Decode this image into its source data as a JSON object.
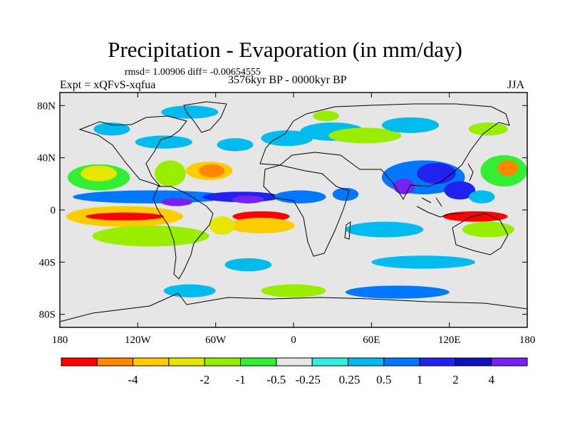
{
  "title": "Precipitation - Evaporation (in mm/day)",
  "stats": "rmsd= 1.00906 diff= -0.00654555",
  "experiment": "Expt = xQFvS-xqfua",
  "period": "3576kyr BP - 0000kyr BP",
  "season": "JJA",
  "map": {
    "projection": "cylindrical equidistant",
    "lon_range": [
      -180,
      180
    ],
    "lat_range": [
      -90,
      90
    ],
    "lat_ticks": [
      {
        "value": 80,
        "label": "80N"
      },
      {
        "value": 40,
        "label": "40N"
      },
      {
        "value": 0,
        "label": "0"
      },
      {
        "value": -40,
        "label": "40S"
      },
      {
        "value": -80,
        "label": "80S"
      }
    ],
    "lon_ticks": [
      {
        "value": -180,
        "label": "180"
      },
      {
        "value": -120,
        "label": "120W"
      },
      {
        "value": -60,
        "label": "60W"
      },
      {
        "value": 0,
        "label": "0"
      },
      {
        "value": 60,
        "label": "60E"
      },
      {
        "value": 120,
        "label": "120E"
      },
      {
        "value": 180,
        "label": "180"
      }
    ]
  },
  "colorbar": {
    "colors": [
      "#ff0000",
      "#ff8800",
      "#ffcc00",
      "#e6e600",
      "#99ee00",
      "#33ee33",
      "#e6e6e6",
      "#33eedd",
      "#00bbee",
      "#0077ff",
      "#2222ee",
      "#1111bb",
      "#7722ee"
    ],
    "labels": [
      "-4",
      "-2",
      "-1",
      "-0.5",
      "-0.25",
      "0.25",
      "0.5",
      "1",
      "2",
      "4"
    ]
  },
  "field_patches": [
    {
      "lon": -150,
      "lat": 25,
      "rlon": 24,
      "rlat": 10,
      "c": 5
    },
    {
      "lon": -150,
      "lat": 28,
      "rlon": 14,
      "rlat": 6,
      "c": 3
    },
    {
      "lon": -95,
      "lat": 28,
      "rlon": 12,
      "rlat": 10,
      "c": 4
    },
    {
      "lon": -65,
      "lat": 30,
      "rlon": 18,
      "rlat": 7,
      "c": 2
    },
    {
      "lon": -63,
      "lat": 30,
      "rlon": 10,
      "rlat": 5,
      "c": 1
    },
    {
      "lon": -45,
      "lat": 50,
      "rlon": 14,
      "rlat": 5,
      "c": 8
    },
    {
      "lon": -100,
      "lat": 52,
      "rlon": 22,
      "rlat": 5,
      "c": 8
    },
    {
      "lon": -80,
      "lat": 75,
      "rlon": 22,
      "rlat": 5,
      "c": 8
    },
    {
      "lon": -140,
      "lat": 62,
      "rlon": 14,
      "rlat": 5,
      "c": 8
    },
    {
      "lon": -5,
      "lat": 55,
      "rlon": 20,
      "rlat": 6,
      "c": 8
    },
    {
      "lon": 30,
      "lat": 60,
      "rlon": 25,
      "rlat": 7,
      "c": 8
    },
    {
      "lon": 55,
      "lat": 57,
      "rlon": 28,
      "rlat": 6,
      "c": 4
    },
    {
      "lon": 90,
      "lat": 65,
      "rlon": 22,
      "rlat": 6,
      "c": 8
    },
    {
      "lon": 150,
      "lat": 62,
      "rlon": 15,
      "rlat": 5,
      "c": 4
    },
    {
      "lon": 25,
      "lat": 72,
      "rlon": 10,
      "rlat": 4,
      "c": 4
    },
    {
      "lon": 162,
      "lat": 30,
      "rlon": 18,
      "rlat": 12,
      "c": 5
    },
    {
      "lon": 165,
      "lat": 32,
      "rlon": 8,
      "rlat": 6,
      "c": 1
    },
    {
      "lon": 100,
      "lat": 25,
      "rlon": 32,
      "rlat": 13,
      "c": 9
    },
    {
      "lon": 110,
      "lat": 28,
      "rlon": 15,
      "rlat": 8,
      "c": 10
    },
    {
      "lon": 85,
      "lat": 18,
      "rlon": 8,
      "rlat": 6,
      "c": 12
    },
    {
      "lon": 128,
      "lat": 15,
      "rlon": 12,
      "rlat": 7,
      "c": 10
    },
    {
      "lon": 145,
      "lat": 10,
      "rlon": 10,
      "rlat": 5,
      "c": 8
    },
    {
      "lon": -110,
      "lat": 10,
      "rlon": 60,
      "rlat": 5,
      "c": 9
    },
    {
      "lon": -40,
      "lat": 10,
      "rlon": 30,
      "rlat": 4,
      "c": 10
    },
    {
      "lon": -90,
      "lat": 6,
      "rlon": 12,
      "rlat": 3,
      "c": 12
    },
    {
      "lon": -35,
      "lat": 8,
      "rlon": 12,
      "rlat": 3,
      "c": 12
    },
    {
      "lon": 5,
      "lat": 10,
      "rlon": 20,
      "rlat": 5,
      "c": 9
    },
    {
      "lon": 40,
      "lat": 12,
      "rlon": 10,
      "rlat": 5,
      "c": 9
    },
    {
      "lon": -130,
      "lat": -5,
      "rlon": 45,
      "rlat": 8,
      "c": 2
    },
    {
      "lon": -130,
      "lat": -5,
      "rlon": 30,
      "rlat": 3,
      "c": 0
    },
    {
      "lon": -110,
      "lat": -20,
      "rlon": 45,
      "rlat": 8,
      "c": 4
    },
    {
      "lon": -25,
      "lat": -5,
      "rlon": 22,
      "rlat": 4,
      "c": 0
    },
    {
      "lon": -25,
      "lat": -12,
      "rlon": 26,
      "rlat": 6,
      "c": 2
    },
    {
      "lon": -55,
      "lat": -12,
      "rlon": 10,
      "rlat": 7,
      "c": 3
    },
    {
      "lon": 70,
      "lat": -15,
      "rlon": 30,
      "rlat": 6,
      "c": 8
    },
    {
      "lon": 140,
      "lat": -5,
      "rlon": 25,
      "rlat": 4,
      "c": 0
    },
    {
      "lon": 150,
      "lat": -15,
      "rlon": 20,
      "rlat": 6,
      "c": 4
    },
    {
      "lon": -35,
      "lat": -42,
      "rlon": 18,
      "rlat": 5,
      "c": 8
    },
    {
      "lon": 100,
      "lat": -40,
      "rlon": 40,
      "rlat": 5,
      "c": 8
    },
    {
      "lon": -80,
      "lat": -62,
      "rlon": 20,
      "rlat": 5,
      "c": 8
    },
    {
      "lon": 80,
      "lat": -63,
      "rlon": 40,
      "rlat": 5,
      "c": 9
    },
    {
      "lon": 0,
      "lat": -62,
      "rlon": 25,
      "rlat": 5,
      "c": 4
    }
  ]
}
